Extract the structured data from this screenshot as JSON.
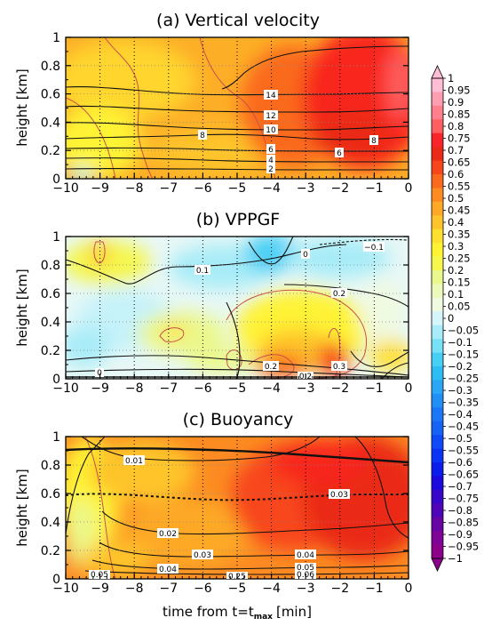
{
  "chart_data": {
    "type": "heatmap",
    "xlabel": "time from t=t",
    "xlabel_sub": "max",
    "xlabel_unit": "[min]",
    "xticks": [
      "−10",
      "−9",
      "−8",
      "−7",
      "−6",
      "−5",
      "−4",
      "−3",
      "−2",
      "−1",
      "0"
    ],
    "xlim": [
      -10,
      0
    ],
    "grid": "dotted vertical lines at each minute, dotted horizontal lines at 0.2 km",
    "colorbar": {
      "placement": "right",
      "labels": [
        "1",
        "0.95",
        "0.9",
        "0.85",
        "0.8",
        "0.75",
        "0.7",
        "0.65",
        "0.6",
        "0.55",
        "0.5",
        "0.45",
        "0.4",
        "0.35",
        "0.3",
        "0.25",
        "0.2",
        "0.15",
        "0.1",
        "0.05",
        "0",
        "−0.05",
        "−0.1",
        "−0.15",
        "−0.2",
        "−0.25",
        "−0.3",
        "−0.35",
        "−0.4",
        "−0.45",
        "−0.5",
        "−0.55",
        "−0.6",
        "−0.65",
        "−0.7",
        "−0.75",
        "−0.8",
        "−0.85",
        "−0.9",
        "−0.95",
        "−1"
      ],
      "colors": [
        "#ffbdd6",
        "#ff9db1",
        "#ff7f8c",
        "#ff5f5f",
        "#f8262b",
        "#ea2a16",
        "#f8461b",
        "#fa6a1e",
        "#fc8b22",
        "#fda927",
        "#fec42c",
        "#ffdf30",
        "#fff334",
        "#f5f74d",
        "#ebf88b",
        "#ebf9b9",
        "#f0fae0",
        "#d4f6fb",
        "#a7ecf8",
        "#77e1f6",
        "#48cff5",
        "#2ebcf4",
        "#2aa6f5",
        "#228ff6",
        "#1b77f7",
        "#1562f7",
        "#0e4af7",
        "#0a33f6",
        "#0a1ded",
        "#1b09de",
        "#3806c9",
        "#5004b7",
        "#6803a4",
        "#7e0396",
        "#8c008a"
      ]
    },
    "panels": [
      {
        "title": "(a) Vertical velocity",
        "ylabel": "height [km]",
        "yticks": [
          "0",
          "0.2",
          "0.4",
          "0.6",
          "0.8",
          "1"
        ],
        "ylim": [
          0,
          1
        ],
        "contour_labels": [
          "14",
          "12",
          "10",
          "8",
          "8",
          "6",
          "6",
          "4",
          "2"
        ]
      },
      {
        "title": "(b) VPPGF",
        "ylabel": "height [km]",
        "yticks": [
          "0",
          "0.2",
          "0.4",
          "0.6",
          "0.8",
          "1"
        ],
        "ylim": [
          0,
          1
        ],
        "contour_labels": [
          "0.1",
          "0",
          "−0.1",
          "0.2",
          "0.2",
          "0.3",
          "0.2",
          "0"
        ]
      },
      {
        "title": "(c) Buoyancy",
        "ylabel": "height [km]",
        "yticks": [
          "0",
          "0.2",
          "0.4",
          "0.6",
          "0.8",
          "1"
        ],
        "ylim": [
          0,
          1
        ],
        "contour_labels": [
          "0.01",
          "0.03",
          "0.02",
          "0.03",
          "0.04",
          "0.04",
          "0.05",
          "0.06",
          "0.05",
          "0.25"
        ]
      }
    ]
  }
}
